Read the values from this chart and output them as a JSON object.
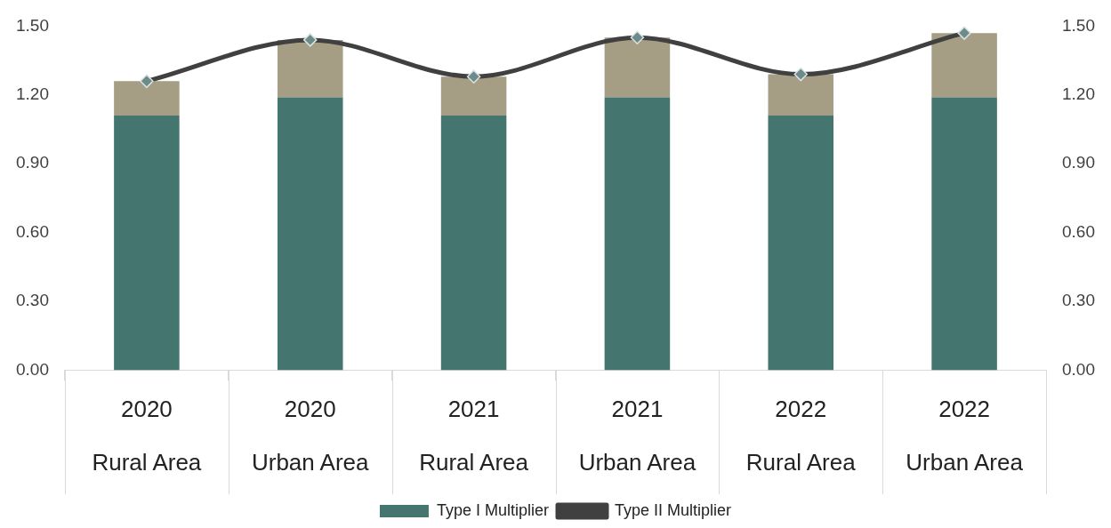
{
  "chart_data": {
    "type": "bar",
    "stacked": true,
    "categories": [
      "2020\nRural Area",
      "2020\nUrban Area",
      "2021\nRural Area",
      "2021\nUrban Area",
      "2022\nRural Area",
      "2022\nUrban Area"
    ],
    "series": [
      {
        "name": "Type I Multiplier",
        "color": "#44756f",
        "values": [
          1.11,
          1.19,
          1.11,
          1.19,
          1.11,
          1.19
        ]
      },
      {
        "color": "#a59d84",
        "values": [
          0.15,
          0.25,
          0.17,
          0.26,
          0.18,
          0.28
        ]
      },
      {
        "name": "Type II Multiplier",
        "type": "line",
        "color": "#404040",
        "marker": "diamond",
        "values": [
          1.26,
          1.44,
          1.28,
          1.45,
          1.29,
          1.47
        ]
      }
    ],
    "ylim": [
      0,
      1.5
    ],
    "yticks": [
      {
        "value": 0,
        "label": "0.00"
      },
      {
        "value": 0.3,
        "label": "0.30"
      },
      {
        "value": 0.6,
        "label": "0.60"
      },
      {
        "value": 0.9,
        "label": "0.90"
      },
      {
        "value": 1.2,
        "label": "1.20"
      },
      {
        "value": 1.5,
        "label": "1.50"
      }
    ],
    "y2lim": [
      0,
      1.5
    ],
    "y2ticks": [
      {
        "value": 0,
        "label": "0.00"
      },
      {
        "value": 0.3,
        "label": "0.30"
      },
      {
        "value": 0.6,
        "label": "0.60"
      },
      {
        "value": 0.9,
        "label": "0.90"
      },
      {
        "value": 1.2,
        "label": "1.20"
      },
      {
        "value": 1.5,
        "label": "1.50"
      }
    ],
    "grid": false,
    "legend": "bottom"
  }
}
